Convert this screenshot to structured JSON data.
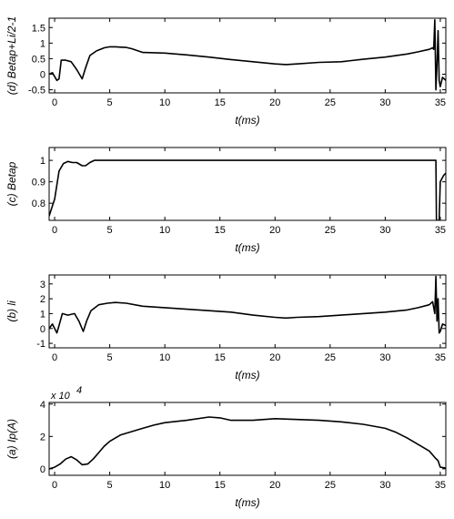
{
  "chart_data": [
    {
      "type": "line",
      "ylabel": "(d) Betap+Li/2-1",
      "xlabel": "t(ms)",
      "xlim": [
        -0.5,
        35.5
      ],
      "ylim": [
        -0.6,
        1.8
      ],
      "xticks": [
        0,
        5,
        10,
        15,
        20,
        25,
        30,
        35
      ],
      "yticks": [
        -0.5,
        0,
        0.5,
        1,
        1.5
      ],
      "ytick_labels": [
        "-0.5",
        "0",
        "0.5",
        "1",
        "1.5"
      ],
      "series": [
        {
          "x": [
            -0.5,
            -0.2,
            0.2,
            0.4,
            0.6,
            1.0,
            1.5,
            2.0,
            2.5,
            2.8,
            3.2,
            3.8,
            4.5,
            5.0,
            5.5,
            6.0,
            6.5,
            7.0,
            8.0,
            10.0,
            12.0,
            14.0,
            16.0,
            18.0,
            20.0,
            21.0,
            22.0,
            24.0,
            26.0,
            28.0,
            30.0,
            32.0,
            33.0,
            34.0,
            34.3,
            34.4,
            34.5,
            34.6,
            34.7,
            34.8,
            34.9,
            35.0,
            35.2,
            35.5
          ],
          "y": [
            0.0,
            0.05,
            -0.2,
            -0.15,
            0.45,
            0.45,
            0.4,
            0.15,
            -0.15,
            0.2,
            0.6,
            0.75,
            0.85,
            0.88,
            0.88,
            0.87,
            0.86,
            0.82,
            0.7,
            0.68,
            0.62,
            0.55,
            0.47,
            0.4,
            0.33,
            0.31,
            0.33,
            0.38,
            0.4,
            0.48,
            0.55,
            0.65,
            0.72,
            0.8,
            0.85,
            0.8,
            1.75,
            -0.5,
            0.3,
            1.4,
            -0.2,
            -0.4,
            -0.1,
            -0.2
          ]
        }
      ]
    },
    {
      "type": "line",
      "ylabel": "(c) Betap",
      "xlabel": "t(ms)",
      "xlim": [
        -0.5,
        35.5
      ],
      "ylim": [
        0.72,
        1.06
      ],
      "xticks": [
        0,
        5,
        10,
        15,
        20,
        25,
        30,
        35
      ],
      "yticks": [
        0.8,
        0.9,
        1
      ],
      "ytick_labels": [
        "0.8",
        "0.9",
        "1"
      ],
      "series": [
        {
          "x": [
            -0.5,
            0.0,
            0.4,
            0.8,
            1.2,
            1.6,
            2.0,
            2.5,
            2.8,
            3.2,
            3.6,
            4.0,
            5.0,
            10.0,
            15.0,
            20.0,
            25.0,
            30.0,
            34.0,
            34.6,
            34.65,
            34.9,
            35.0,
            35.3,
            35.5
          ],
          "y": [
            0.74,
            0.82,
            0.95,
            0.985,
            0.995,
            0.99,
            0.99,
            0.975,
            0.975,
            0.99,
            1.0,
            1.0,
            1.0,
            1.0,
            1.0,
            1.0,
            1.0,
            1.0,
            1.0,
            1.0,
            0.72,
            0.72,
            0.9,
            0.93,
            0.94
          ]
        }
      ]
    },
    {
      "type": "line",
      "ylabel": "(b) li",
      "xlabel": "t(ms)",
      "xlim": [
        -0.5,
        35.5
      ],
      "ylim": [
        -1.3,
        3.6
      ],
      "xticks": [
        0,
        5,
        10,
        15,
        20,
        25,
        30,
        35
      ],
      "yticks": [
        -1,
        0,
        1,
        2,
        3
      ],
      "ytick_labels": [
        "-1",
        "0",
        "1",
        "2",
        "3"
      ],
      "series": [
        {
          "x": [
            -0.5,
            -0.2,
            0.2,
            0.4,
            0.7,
            1.2,
            1.8,
            2.2,
            2.6,
            2.9,
            3.3,
            4.0,
            4.8,
            5.5,
            6.5,
            8.0,
            10.0,
            12.0,
            14.0,
            16.0,
            18.0,
            20.0,
            21.0,
            22.0,
            24.0,
            26.0,
            28.0,
            30.0,
            32.0,
            33.0,
            34.0,
            34.3,
            34.5,
            34.6,
            34.7,
            34.8,
            34.9,
            35.0,
            35.2,
            35.5
          ],
          "y": [
            0.0,
            0.3,
            -0.3,
            0.2,
            1.0,
            0.9,
            1.0,
            0.5,
            -0.2,
            0.5,
            1.2,
            1.6,
            1.7,
            1.75,
            1.7,
            1.5,
            1.4,
            1.3,
            1.2,
            1.1,
            0.9,
            0.75,
            0.7,
            0.75,
            0.8,
            0.9,
            1.0,
            1.1,
            1.25,
            1.4,
            1.6,
            1.8,
            1.0,
            3.5,
            0.5,
            2.0,
            -0.3,
            -0.2,
            0.3,
            0.2
          ]
        }
      ]
    },
    {
      "type": "line",
      "ylabel": "(a) Ip(A)",
      "xlabel": "t(ms)",
      "exponent_label": "x 10",
      "exponent_power": "4",
      "xlim": [
        -0.5,
        35.5
      ],
      "ylim": [
        -0.4,
        4.1
      ],
      "xticks": [
        0,
        5,
        10,
        15,
        20,
        25,
        30,
        35
      ],
      "yticks": [
        0,
        2,
        4
      ],
      "ytick_labels": [
        "0",
        "2",
        "4"
      ],
      "series": [
        {
          "x": [
            -0.5,
            0.0,
            0.5,
            1.0,
            1.5,
            2.0,
            2.5,
            3.0,
            3.5,
            4.0,
            4.5,
            5.0,
            6.0,
            7.0,
            8.0,
            9.0,
            10.0,
            12.0,
            14.0,
            15.0,
            16.0,
            18.0,
            20.0,
            22.0,
            24.0,
            26.0,
            28.0,
            30.0,
            31.0,
            32.0,
            33.0,
            34.0,
            34.5,
            34.8,
            35.0,
            35.5
          ],
          "y": [
            0.0,
            0.1,
            0.3,
            0.6,
            0.75,
            0.55,
            0.25,
            0.3,
            0.6,
            1.0,
            1.4,
            1.7,
            2.1,
            2.3,
            2.5,
            2.7,
            2.85,
            3.0,
            3.2,
            3.15,
            3.0,
            3.0,
            3.1,
            3.05,
            3.0,
            2.9,
            2.75,
            2.5,
            2.25,
            1.9,
            1.5,
            1.1,
            0.7,
            0.5,
            0.1,
            0.05
          ]
        }
      ]
    }
  ]
}
